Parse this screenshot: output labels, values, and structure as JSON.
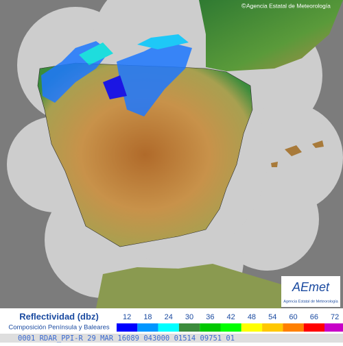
{
  "header": {
    "copyright": "Agencia Estatal de Meteorología"
  },
  "logo": {
    "name": "AEmet",
    "subtitle": "Agencia Estatal de Meteorología"
  },
  "legend": {
    "title": "Reflectividad (dbz)",
    "subtitle": "Composición Península y Baleares",
    "items": [
      {
        "label": "12",
        "color": "#0000fe"
      },
      {
        "label": "18",
        "color": "#0096ff"
      },
      {
        "label": "24",
        "color": "#00ffff"
      },
      {
        "label": "30",
        "color": "#3c8c3c"
      },
      {
        "label": "36",
        "color": "#00c800"
      },
      {
        "label": "42",
        "color": "#00ff00"
      },
      {
        "label": "48",
        "color": "#ffff00"
      },
      {
        "label": "54",
        "color": "#ffc800"
      },
      {
        "label": "60",
        "color": "#ff8000"
      },
      {
        "label": "66",
        "color": "#ff0000"
      },
      {
        "label": "72",
        "color": "#c800c8"
      }
    ]
  },
  "footer": {
    "text": "0001 RDAR_PPI-R  29 MAR 16089 043000 01514 09751 01"
  }
}
